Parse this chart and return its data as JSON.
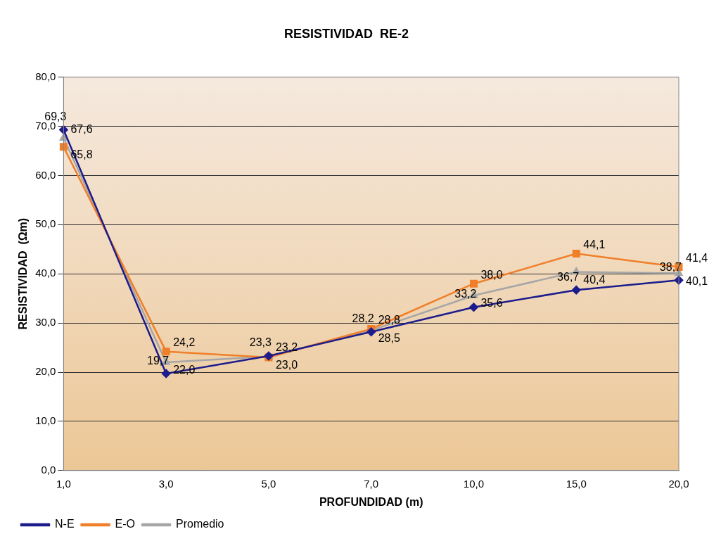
{
  "chart_data": {
    "type": "line",
    "title": "RESISTIVIDAD  RE-2",
    "xlabel": "PROFUNDIDAD (m)",
    "ylabel": "RESISTIVIDAD  (Ωm)",
    "categories": [
      "1,0",
      "3,0",
      "5,0",
      "7,0",
      "10,0",
      "15,0",
      "20,0"
    ],
    "series": [
      {
        "name": "N-E",
        "color": "#1c1c8c",
        "marker": "diamond",
        "values": [
          69.3,
          19.7,
          23.3,
          28.2,
          33.2,
          36.7,
          38.7
        ],
        "value_labels": [
          "69,3",
          "19,7",
          "23,3",
          "28,2",
          "33,2",
          "36,7",
          "38,7"
        ]
      },
      {
        "name": "E-O",
        "color": "#f07f2a",
        "marker": "square",
        "values": [
          65.8,
          24.2,
          23.0,
          28.8,
          38.0,
          44.1,
          41.4
        ],
        "value_labels": [
          "65,8",
          "24,2",
          "23,0",
          "28,8",
          "38,0",
          "44,1",
          "41,4"
        ]
      },
      {
        "name": "Promedio",
        "color": "#a6a6a6",
        "marker": "triangle",
        "values": [
          67.6,
          22.0,
          23.2,
          28.5,
          35.6,
          40.4,
          40.1
        ],
        "value_labels": [
          "67,6",
          "22,0",
          "23,2",
          "28,5",
          "35,6",
          "40,4",
          "40,1"
        ]
      }
    ],
    "ylim": [
      0,
      80
    ],
    "yticks": [
      {
        "value": 0,
        "label": "0,0"
      },
      {
        "value": 10,
        "label": "10,0"
      },
      {
        "value": 20,
        "label": "20,0"
      },
      {
        "value": 30,
        "label": "30,0"
      },
      {
        "value": 40,
        "label": "40,0"
      },
      {
        "value": 50,
        "label": "50,0"
      },
      {
        "value": 60,
        "label": "60,0"
      },
      {
        "value": 70,
        "label": "70,0"
      },
      {
        "value": 80,
        "label": "80,0"
      }
    ],
    "grid": "y",
    "legend": "bottom left"
  }
}
